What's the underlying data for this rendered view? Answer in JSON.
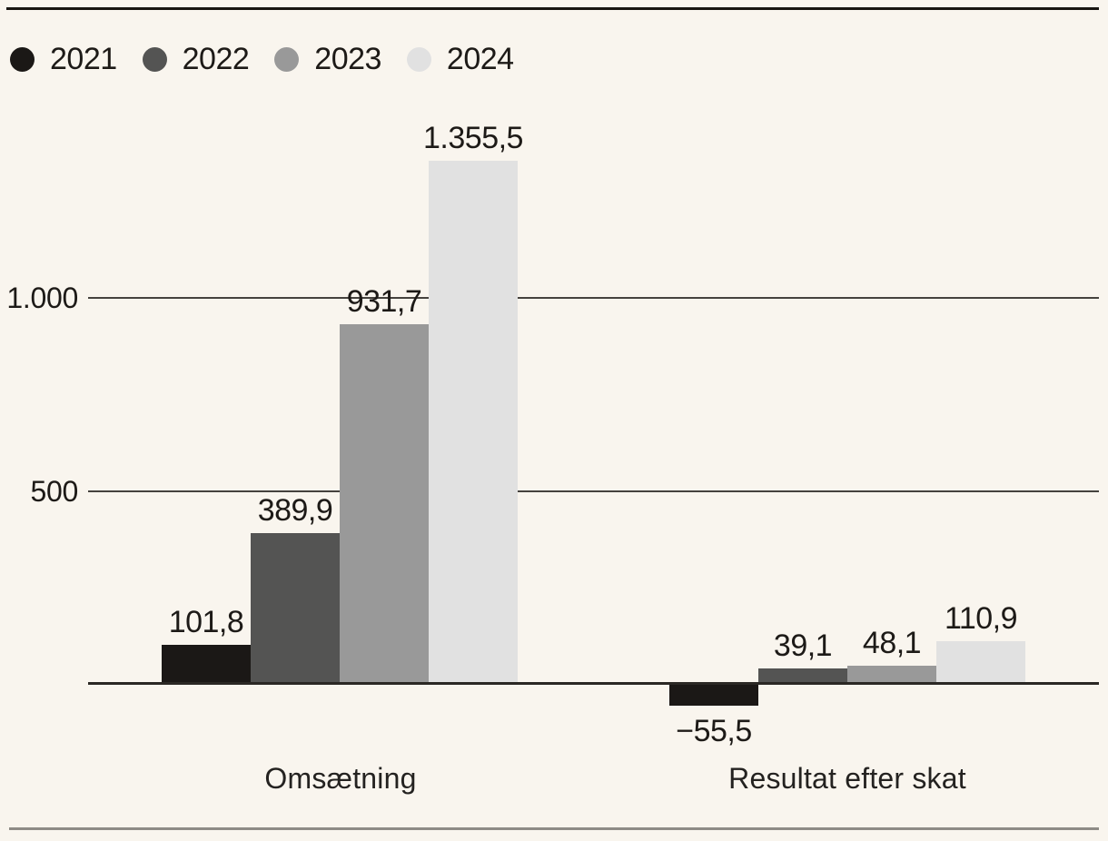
{
  "chart_data": {
    "type": "bar",
    "categories": [
      "Omsætning",
      "Resultat efter skat"
    ],
    "series": [
      {
        "name": "2021",
        "color": "#1b1816",
        "values": [
          101.8,
          -55.5
        ],
        "labels": [
          "101,8",
          "−55,5"
        ]
      },
      {
        "name": "2022",
        "color": "#545453",
        "values": [
          389.9,
          39.1
        ],
        "labels": [
          "389,9",
          "39,1"
        ]
      },
      {
        "name": "2023",
        "color": "#999999",
        "values": [
          931.7,
          48.1
        ],
        "labels": [
          "931,7",
          "48,1"
        ]
      },
      {
        "name": "2024",
        "color": "#e1e1e1",
        "values": [
          1355.5,
          110.9
        ],
        "labels": [
          "1.355,5",
          "110,9"
        ]
      }
    ],
    "y_ticks": [
      {
        "value": 1000,
        "label": "1.000"
      },
      {
        "value": 500,
        "label": "500"
      }
    ],
    "ylim": [
      -130,
      1420
    ],
    "grid": "horizontal-only",
    "legend_position": "top-left",
    "number_format": "da-DK",
    "title": "",
    "xlabel": "",
    "ylabel": ""
  },
  "colors": {
    "background": "#f9f5ee",
    "top_rule": "#181511",
    "bottom_rule": "#8e8b86",
    "gridline": "#45423e",
    "baseline": "#2b2824",
    "text": "#1d1a17"
  }
}
